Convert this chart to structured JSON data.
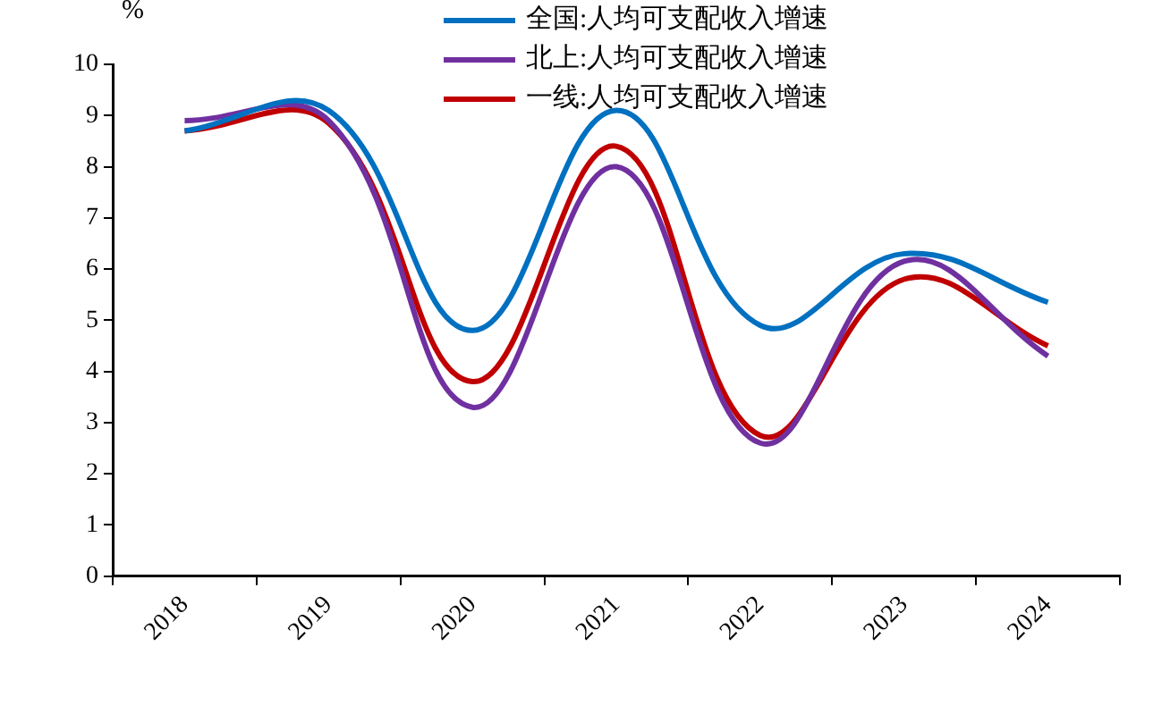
{
  "chart_data": {
    "type": "line",
    "ylabel": "%",
    "categories": [
      "2018",
      "2019",
      "2020",
      "2021",
      "2022",
      "2023",
      "2024"
    ],
    "series": [
      {
        "name": "全国:人均可支配收入增速",
        "color": "#0070c0",
        "values": [
          8.7,
          9.1,
          4.8,
          9.1,
          4.9,
          6.3,
          5.35
        ]
      },
      {
        "name": "北上:人均可支配收入增速",
        "color": "#7030a0",
        "values": [
          8.9,
          8.9,
          3.3,
          8.0,
          2.6,
          6.15,
          4.3
        ]
      },
      {
        "name": "一线:人均可支配收入增速",
        "color": "#c00000",
        "values": [
          8.7,
          8.85,
          3.8,
          8.4,
          2.75,
          5.8,
          4.5
        ]
      }
    ],
    "ylim": [
      0,
      10
    ],
    "yticks": [
      0,
      1,
      2,
      3,
      4,
      5,
      6,
      7,
      8,
      9,
      10
    ],
    "grid": false,
    "legend": "top",
    "marker": "none",
    "line_style": "solid"
  }
}
